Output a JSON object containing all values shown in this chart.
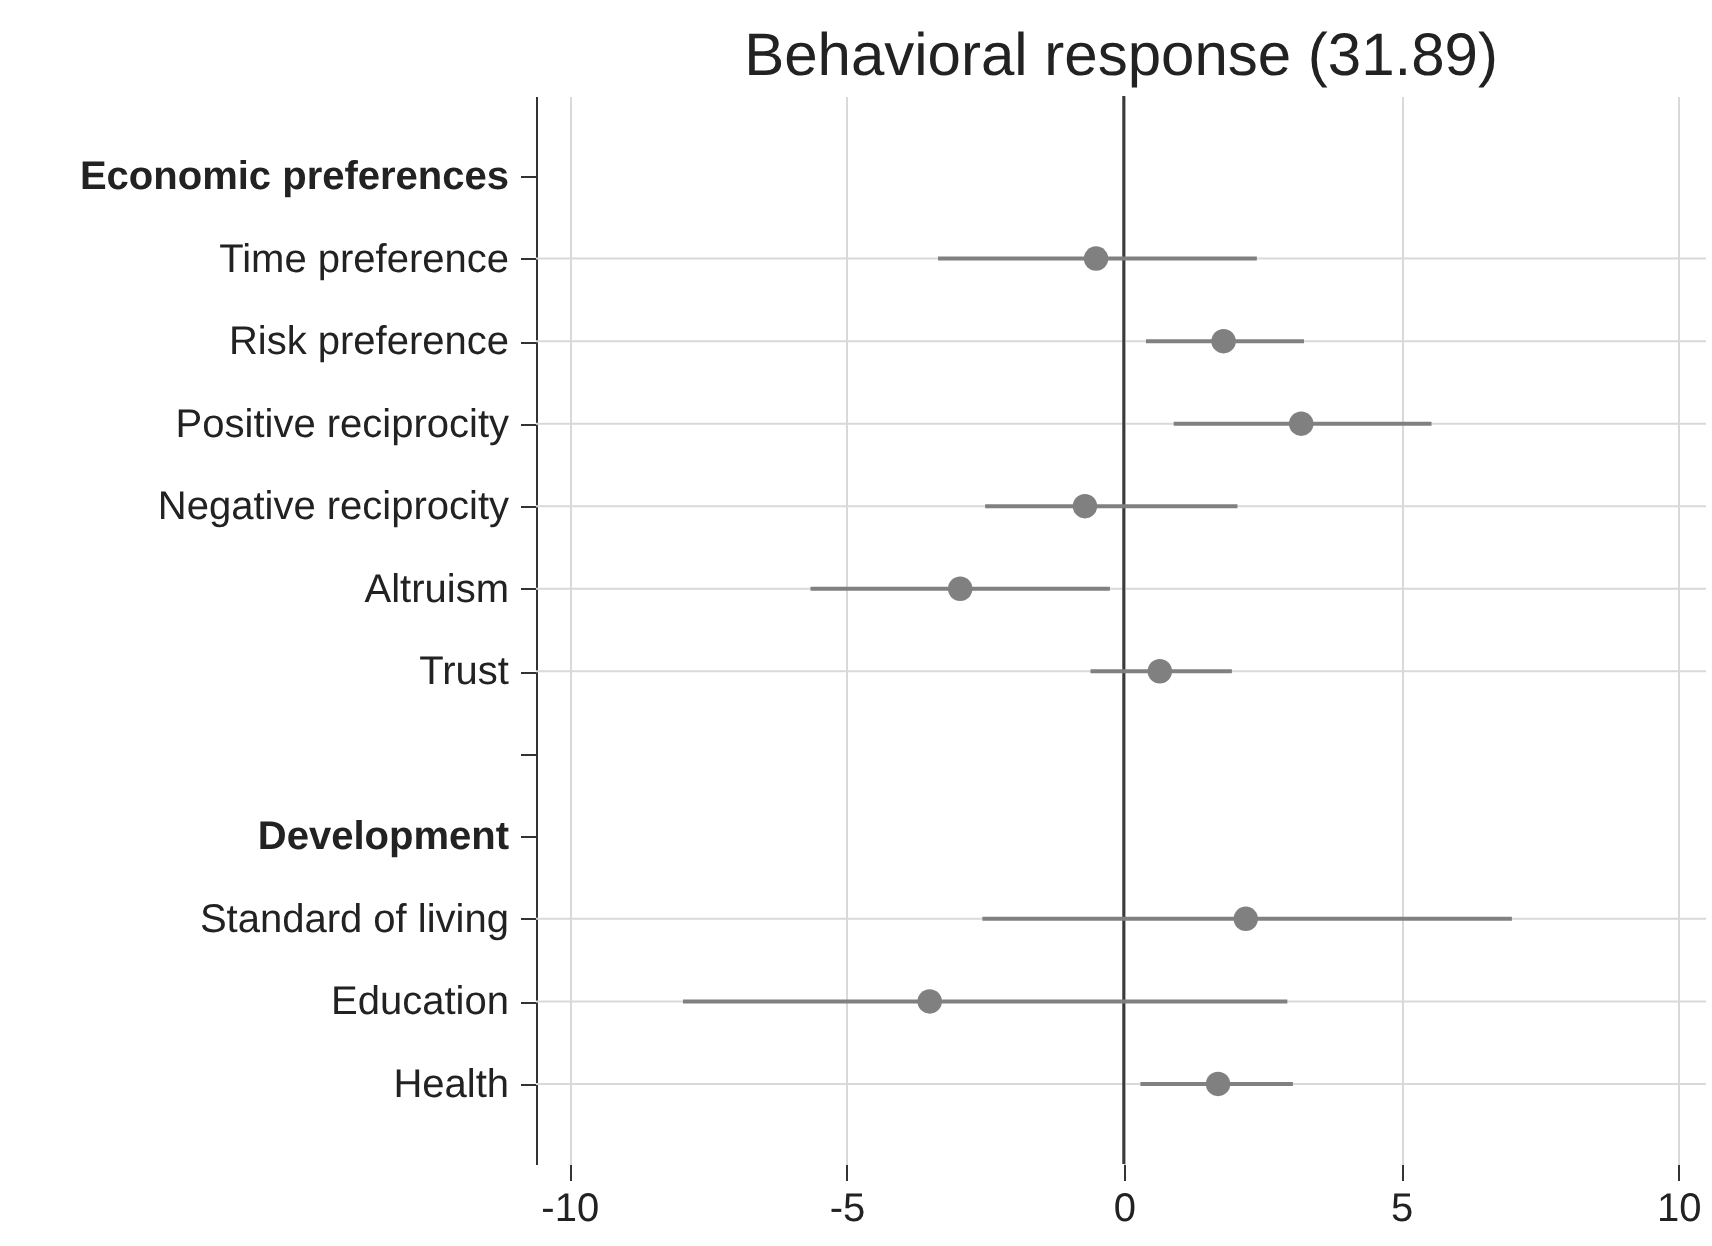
{
  "chart_data": {
    "type": "scatter",
    "orientation": "horizontal",
    "title": "Behavioral response (31.89)",
    "categories": [
      "Economic preferences",
      "Time preference",
      "Risk preference",
      "Positive reciprocity",
      "Negative reciprocity",
      "Altruism",
      "Trust",
      null,
      "Development",
      "Standard of living",
      "Education",
      "Health"
    ],
    "values": [
      null,
      -0.5,
      1.8,
      3.2,
      -0.7,
      -2.95,
      0.65,
      null,
      null,
      2.2,
      -3.5,
      1.7
    ],
    "errors": [
      null,
      [
        -3.35,
        2.4
      ],
      [
        0.4,
        3.25
      ],
      [
        0.9,
        5.55
      ],
      [
        -2.5,
        2.05
      ],
      [
        -5.65,
        -0.25
      ],
      [
        -0.6,
        1.95
      ],
      null,
      null,
      [
        -2.55,
        7.0
      ],
      [
        -7.95,
        2.95
      ],
      [
        0.3,
        3.05
      ]
    ],
    "color": "#808080",
    "marker": "circle",
    "xlim": [
      -10.6,
      10.5
    ],
    "xticks": [
      -10,
      -5,
      0,
      5,
      10
    ],
    "grid": true,
    "ref_lines": [
      {
        "axis": "x",
        "value": 0,
        "color": "#3a3a3a"
      }
    ]
  }
}
